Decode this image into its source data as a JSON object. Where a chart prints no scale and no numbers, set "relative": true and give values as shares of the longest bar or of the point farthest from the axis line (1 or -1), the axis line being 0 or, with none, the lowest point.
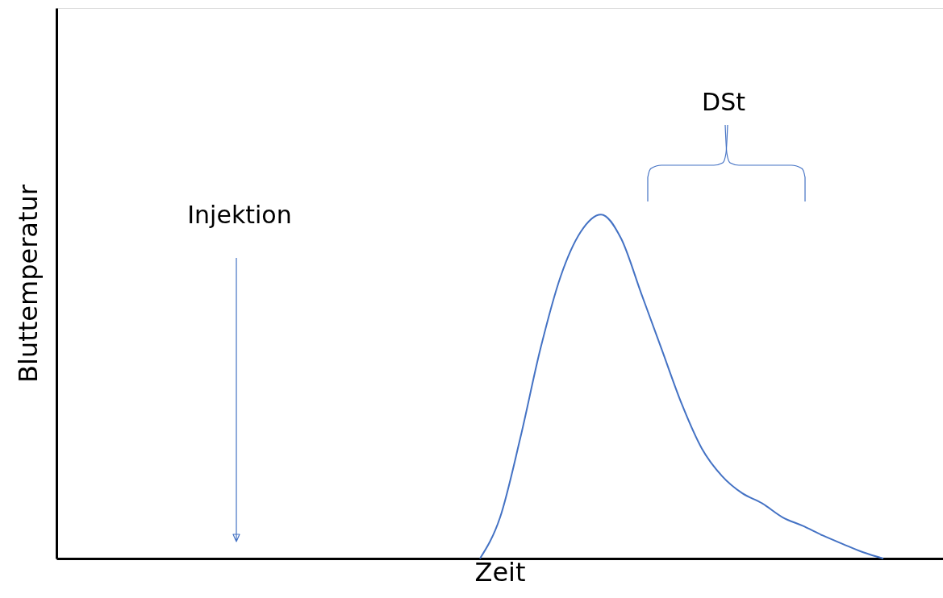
{
  "chart_data": {
    "type": "line",
    "relative": true,
    "xlabel": "Zeit",
    "ylabel": "Bluttemperatur",
    "categories": [
      null,
      null,
      null,
      null,
      null,
      null,
      null,
      null,
      null,
      null,
      null,
      null,
      null,
      null,
      null,
      null,
      null,
      null,
      null,
      null,
      null,
      null,
      null,
      null,
      null,
      null,
      null,
      null,
      null,
      null,
      null,
      null,
      null,
      null,
      null,
      null,
      null,
      null,
      null,
      null,
      null,
      null,
      null,
      null
    ],
    "series": [
      {
        "color": "#4472c4",
        "values": [
          null,
          null,
          null,
          null,
          null,
          null,
          null,
          null,
          null,
          null,
          null,
          null,
          null,
          null,
          null,
          null,
          null,
          null,
          null,
          null,
          null,
          0,
          0.12,
          0.35,
          0.61,
          0.82,
          0.95,
          1.0,
          0.93,
          0.77,
          0.61,
          0.45,
          0.32,
          0.24,
          0.19,
          0.16,
          0.12,
          0.095,
          0.067,
          0.042,
          0.018,
          0,
          null,
          null
        ]
      }
    ],
    "annotations": [
      "Injektion",
      "DSt"
    ],
    "tick_labels": false,
    "grid": false,
    "marker": "none",
    "line_style": "solid"
  }
}
